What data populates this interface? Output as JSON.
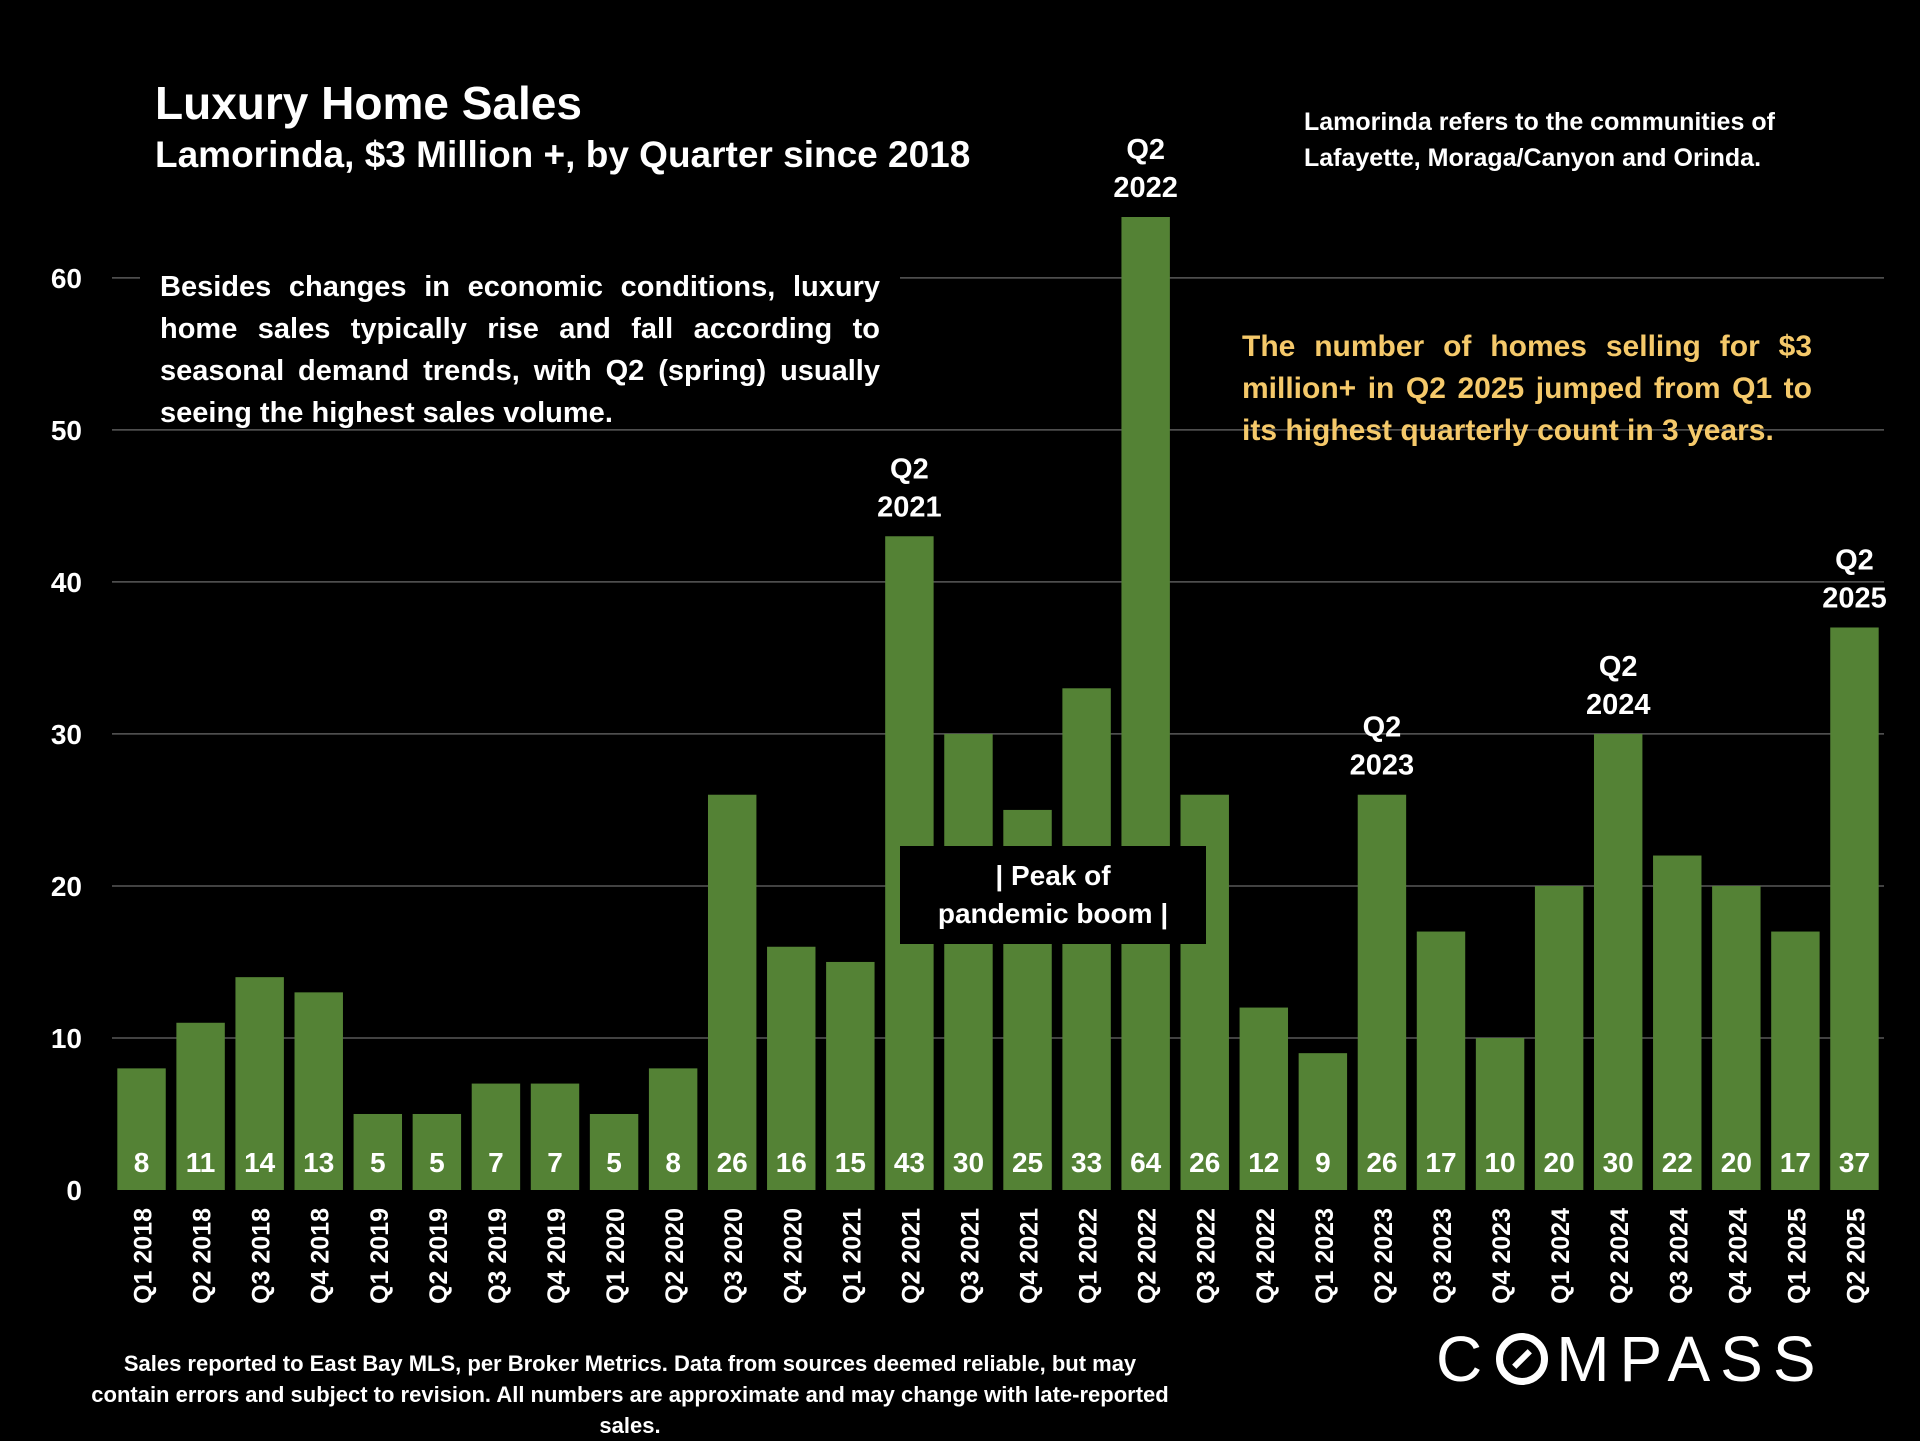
{
  "title": "Luxury Home Sales",
  "subtitle": "Lamorinda, $3 Million +, by Quarter since 2018",
  "note_top": "Lamorinda refers to the communities of Lafayette, Moraga/Canyon and Orinda.",
  "note_left": "Besides changes in economic conditions, luxury home sales typically rise and fall according to seasonal demand trends, with Q2 (spring) usually seeing the highest sales volume.",
  "note_right": "The number of homes selling for $3 million+ in Q2 2025 jumped from Q1 to its highest quarterly count in 3 years.",
  "peak_label": "| Peak of pandemic boom |",
  "footer": "Sales reported to East Bay MLS, per Broker Metrics. Data from sources deemed reliable, but may contain errors and subject to revision. All numbers are approximate and may change with late-reported sales.",
  "logo": {
    "before": "C",
    "after": "MPASS"
  },
  "colors": {
    "background": "#000000",
    "bar": "#548235",
    "grid": "#595959",
    "highlight_text": "#f5c96a"
  },
  "chart_data": {
    "type": "bar",
    "categories": [
      "Q1 2018",
      "Q2 2018",
      "Q3 2018",
      "Q4 2018",
      "Q1 2019",
      "Q2 2019",
      "Q3 2019",
      "Q4 2019",
      "Q1 2020",
      "Q2 2020",
      "Q3 2020",
      "Q4 2020",
      "Q1 2021",
      "Q2 2021",
      "Q3 2021",
      "Q4 2021",
      "Q1 2022",
      "Q2 2022",
      "Q3 2022",
      "Q4 2022",
      "Q1 2023",
      "Q2 2023",
      "Q3 2023",
      "Q4 2023",
      "Q1 2024",
      "Q2 2024",
      "Q3 2024",
      "Q4 2024",
      "Q1 2025",
      "Q2 2025"
    ],
    "values": [
      8,
      11,
      14,
      13,
      5,
      5,
      7,
      7,
      5,
      8,
      26,
      16,
      15,
      43,
      30,
      25,
      33,
      64,
      26,
      12,
      9,
      26,
      17,
      10,
      20,
      30,
      22,
      20,
      17,
      37
    ],
    "ylim": [
      0,
      64
    ],
    "yticks": [
      0,
      10,
      20,
      30,
      40,
      50,
      60
    ],
    "grid": true,
    "annotations": [
      {
        "category": "Q2 2021",
        "lines": [
          "Q2",
          "2021"
        ]
      },
      {
        "category": "Q2 2022",
        "lines": [
          "Q2",
          "2022"
        ]
      },
      {
        "category": "Q2 2023",
        "lines": [
          "Q2",
          "2023"
        ]
      },
      {
        "category": "Q2 2024",
        "lines": [
          "Q2",
          "2024"
        ]
      },
      {
        "category": "Q2 2025",
        "lines": [
          "Q2",
          "2025"
        ]
      }
    ]
  }
}
